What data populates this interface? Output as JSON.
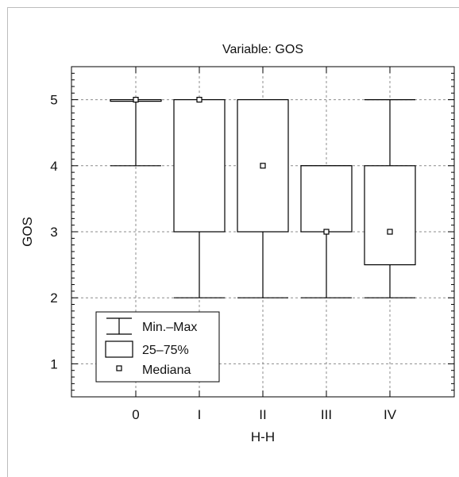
{
  "chart_data": {
    "type": "box",
    "title": "Variable: GOS",
    "xlabel": "H-H",
    "ylabel": "GOS",
    "categories": [
      "0",
      "I",
      "II",
      "III",
      "IV"
    ],
    "ylim": [
      0.5,
      5.5
    ],
    "yticks": [
      1,
      2,
      3,
      4,
      5
    ],
    "grid": true,
    "legend_position": "bottom-left",
    "legend": {
      "minmax": "Min.–Max",
      "iqr": "25–75%",
      "median": "Mediana"
    },
    "boxes": [
      {
        "category": "0",
        "min": 4,
        "q1": 5,
        "median": 5,
        "q3": 5,
        "max": 5
      },
      {
        "category": "I",
        "min": 2,
        "q1": 3,
        "median": 5,
        "q3": 5,
        "max": 5
      },
      {
        "category": "II",
        "min": 2,
        "q1": 3,
        "median": 4,
        "q3": 5,
        "max": 5
      },
      {
        "category": "III",
        "min": 2,
        "q1": 3,
        "median": 3,
        "q3": 4,
        "max": 4
      },
      {
        "category": "IV",
        "min": 2,
        "q1": 2.5,
        "median": 3,
        "q3": 4,
        "max": 5
      }
    ]
  }
}
